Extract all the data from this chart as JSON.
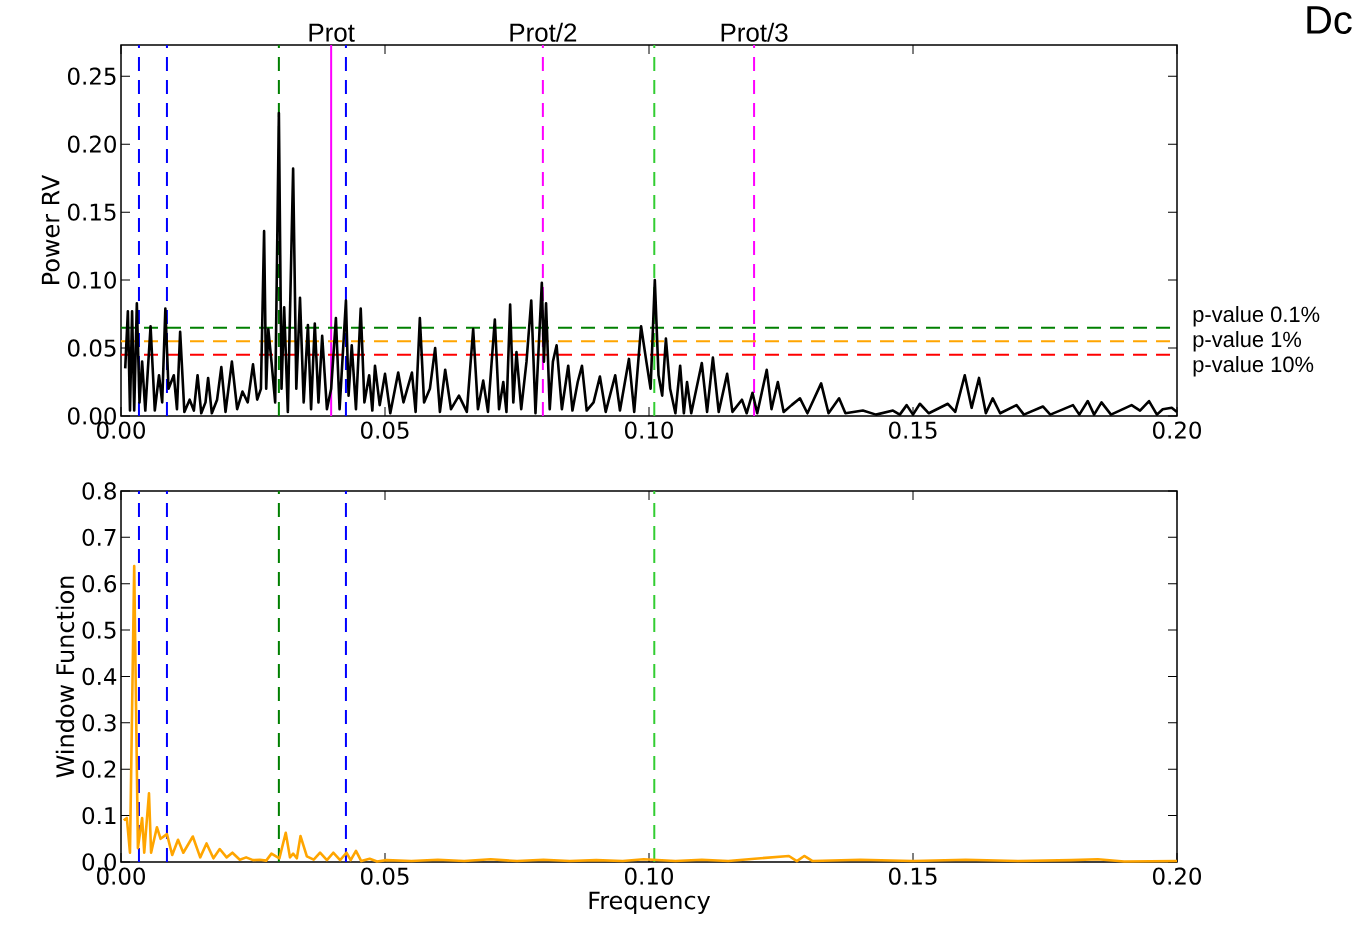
{
  "chart_data": [
    {
      "type": "line",
      "ylabel": "Power RV",
      "annotations": [
        "Dc"
      ],
      "xlim": [
        0,
        0.2
      ],
      "ylim": [
        0,
        0.273
      ],
      "xticks": [
        {
          "value": 0,
          "label": "0.00"
        },
        {
          "value": 0.05,
          "label": "0.05"
        },
        {
          "value": 0.1,
          "label": "0.10"
        },
        {
          "value": 0.15,
          "label": "0.15"
        },
        {
          "value": 0.2,
          "label": "0.20"
        }
      ],
      "yticks": [
        {
          "value": 0,
          "label": "0.00"
        },
        {
          "value": 0.05,
          "label": "0.05"
        },
        {
          "value": 0.1,
          "label": "0.10"
        },
        {
          "value": 0.15,
          "label": "0.15"
        },
        {
          "value": 0.2,
          "label": "0.20"
        },
        {
          "value": 0.25,
          "label": "0.25"
        }
      ],
      "ref_lines": [
        {
          "axis": "x",
          "value": 0.0034,
          "color": "#0000ff",
          "line_style": "dashed"
        },
        {
          "axis": "x",
          "value": 0.0087,
          "color": "#0000ff",
          "line_style": "dashed"
        },
        {
          "axis": "x",
          "value": 0.0299,
          "color": "#007f00",
          "line_style": "dashed"
        },
        {
          "axis": "x",
          "value": 0.0398,
          "color": "#ff00ff",
          "line_style": "solid",
          "label": "Prot"
        },
        {
          "axis": "x",
          "value": 0.0426,
          "color": "#0000ff",
          "line_style": "dashed"
        },
        {
          "axis": "x",
          "value": 0.0799,
          "color": "#ff00ff",
          "line_style": "dashed",
          "label": "Prot/2"
        },
        {
          "axis": "x",
          "value": 0.101,
          "color": "#32cd32",
          "line_style": "dashed"
        },
        {
          "axis": "x",
          "value": 0.1199,
          "color": "#ff00ff",
          "line_style": "dashed",
          "label": "Prot/3"
        },
        {
          "axis": "y",
          "value": 0.065,
          "color": "#008000",
          "line_style": "dashed",
          "label": "p-value 0.1%"
        },
        {
          "axis": "y",
          "value": 0.055,
          "color": "#ffa500",
          "line_style": "dashed",
          "label": "p-value 1%"
        },
        {
          "axis": "y",
          "value": 0.045,
          "color": "#ff0000",
          "line_style": "dashed",
          "label": "p-value 10%"
        }
      ],
      "x": [
        0.0008,
        0.0013,
        0.0017,
        0.0021,
        0.0025,
        0.003,
        0.0035,
        0.004,
        0.0046,
        0.0056,
        0.0064,
        0.0072,
        0.0078,
        0.0084,
        0.009,
        0.01,
        0.0106,
        0.0112,
        0.012,
        0.013,
        0.0138,
        0.0145,
        0.0152,
        0.016,
        0.0165,
        0.0172,
        0.0182,
        0.019,
        0.0198,
        0.021,
        0.022,
        0.023,
        0.024,
        0.025,
        0.0258,
        0.0265,
        0.0271,
        0.0275,
        0.0279,
        0.0285,
        0.0292,
        0.0299,
        0.0304,
        0.0309,
        0.0316,
        0.0326,
        0.0332,
        0.0339,
        0.0346,
        0.0354,
        0.036,
        0.0367,
        0.0374,
        0.0381,
        0.039,
        0.0398,
        0.0407,
        0.0414,
        0.0426,
        0.0431,
        0.0437,
        0.0445,
        0.0454,
        0.0461,
        0.047,
        0.0476,
        0.0481,
        0.049,
        0.05,
        0.051,
        0.0525,
        0.0535,
        0.0551,
        0.0558,
        0.0566,
        0.0574,
        0.0585,
        0.0595,
        0.0604,
        0.0614,
        0.0625,
        0.064,
        0.0655,
        0.0667,
        0.0676,
        0.0686,
        0.0695,
        0.0708,
        0.0716,
        0.0724,
        0.073,
        0.0737,
        0.0743,
        0.0749,
        0.0758,
        0.0768,
        0.0777,
        0.0785,
        0.0797,
        0.0801,
        0.0805,
        0.0812,
        0.0818,
        0.0825,
        0.0835,
        0.0847,
        0.0855,
        0.0865,
        0.0873,
        0.0882,
        0.0895,
        0.0907,
        0.0918,
        0.0936,
        0.0945,
        0.0962,
        0.0972,
        0.0985,
        0.0995,
        0.1003,
        0.1011,
        0.1018,
        0.1025,
        0.1032,
        0.104,
        0.105,
        0.1059,
        0.1066,
        0.1072,
        0.108,
        0.11,
        0.111,
        0.1121,
        0.1132,
        0.1148,
        0.1158,
        0.1176,
        0.1185,
        0.1196,
        0.1205,
        0.1223,
        0.1232,
        0.1244,
        0.1255,
        0.127,
        0.1286,
        0.13,
        0.1326,
        0.134,
        0.136,
        0.1372,
        0.1405,
        0.143,
        0.1462,
        0.1475,
        0.1488,
        0.15,
        0.1513,
        0.153,
        0.1566,
        0.158,
        0.1598,
        0.1611,
        0.1625,
        0.1638,
        0.1651,
        0.1665,
        0.1696,
        0.171,
        0.1746,
        0.176,
        0.1803,
        0.1815,
        0.1831,
        0.1843,
        0.1857,
        0.1875,
        0.1914,
        0.193,
        0.1947,
        0.1962,
        0.1973,
        0.199,
        0.2
      ],
      "series": [
        {
          "color": "#000000",
          "values": [
            0.035,
            0.077,
            0.004,
            0.077,
            0.004,
            0.083,
            0.01,
            0.04,
            0.004,
            0.066,
            0.004,
            0.03,
            0.01,
            0.079,
            0.02,
            0.03,
            0.005,
            0.062,
            0.003,
            0.012,
            0.004,
            0.03,
            0.002,
            0.01,
            0.028,
            0.002,
            0.012,
            0.036,
            0.003,
            0.04,
            0.005,
            0.018,
            0.01,
            0.038,
            0.012,
            0.02,
            0.136,
            0.02,
            0.064,
            0.04,
            0.01,
            0.223,
            0.02,
            0.08,
            0.003,
            0.182,
            0.02,
            0.087,
            0.01,
            0.067,
            0.005,
            0.068,
            0.01,
            0.059,
            0.005,
            0.02,
            0.072,
            0.005,
            0.085,
            0.015,
            0.052,
            0.005,
            0.079,
            0.01,
            0.03,
            0.004,
            0.037,
            0.008,
            0.031,
            0.002,
            0.032,
            0.01,
            0.032,
            0.003,
            0.072,
            0.01,
            0.02,
            0.05,
            0.003,
            0.034,
            0.005,
            0.015,
            0.003,
            0.064,
            0.005,
            0.026,
            0.003,
            0.071,
            0.005,
            0.025,
            0.003,
            0.082,
            0.01,
            0.047,
            0.005,
            0.04,
            0.085,
            0.002,
            0.098,
            0.04,
            0.083,
            0.005,
            0.04,
            0.052,
            0.005,
            0.037,
            0.004,
            0.025,
            0.037,
            0.004,
            0.01,
            0.029,
            0.003,
            0.03,
            0.004,
            0.042,
            0.003,
            0.066,
            0.04,
            0.02,
            0.1,
            0.03,
            0.015,
            0.057,
            0.02,
            0.002,
            0.037,
            0.002,
            0.025,
            0.002,
            0.039,
            0.003,
            0.043,
            0.003,
            0.031,
            0.003,
            0.012,
            0.002,
            0.017,
            0.002,
            0.034,
            0.005,
            0.025,
            0.003,
            0.008,
            0.013,
            0.002,
            0.024,
            0.002,
            0.013,
            0.002,
            0.004,
            0.001,
            0.004,
            0.001,
            0.008,
            0.001,
            0.009,
            0.002,
            0.009,
            0.003,
            0.03,
            0.006,
            0.028,
            0.002,
            0.013,
            0.002,
            0.008,
            0.001,
            0.007,
            0.001,
            0.008,
            0.001,
            0.011,
            0.001,
            0.01,
            0.001,
            0.008,
            0.004,
            0.011,
            0.001,
            0.005,
            0.006,
            0.003
          ]
        }
      ]
    },
    {
      "type": "line",
      "xlabel": "Frequency",
      "ylabel": "Window Function",
      "xlim": [
        0,
        0.2
      ],
      "ylim": [
        0,
        0.8
      ],
      "xticks": [
        {
          "value": 0,
          "label": "0.00"
        },
        {
          "value": 0.05,
          "label": "0.05"
        },
        {
          "value": 0.1,
          "label": "0.10"
        },
        {
          "value": 0.15,
          "label": "0.15"
        },
        {
          "value": 0.2,
          "label": "0.20"
        }
      ],
      "yticks": [
        {
          "value": 0,
          "label": "0.0"
        },
        {
          "value": 0.1,
          "label": "0.1"
        },
        {
          "value": 0.2,
          "label": "0.2"
        },
        {
          "value": 0.3,
          "label": "0.3"
        },
        {
          "value": 0.4,
          "label": "0.4"
        },
        {
          "value": 0.5,
          "label": "0.5"
        },
        {
          "value": 0.6,
          "label": "0.6"
        },
        {
          "value": 0.7,
          "label": "0.7"
        },
        {
          "value": 0.8,
          "label": "0.8"
        }
      ],
      "ref_lines": [
        {
          "axis": "x",
          "value": 0.0034,
          "color": "#0000ff",
          "line_style": "dashed"
        },
        {
          "axis": "x",
          "value": 0.0087,
          "color": "#0000ff",
          "line_style": "dashed"
        },
        {
          "axis": "x",
          "value": 0.0299,
          "color": "#007f00",
          "line_style": "dashed"
        },
        {
          "axis": "x",
          "value": 0.0426,
          "color": "#0000ff",
          "line_style": "dashed"
        },
        {
          "axis": "x",
          "value": 0.101,
          "color": "#32cd32",
          "line_style": "dashed"
        }
      ],
      "x": [
        0.0005,
        0.0011,
        0.0017,
        0.0025,
        0.0032,
        0.004,
        0.0044,
        0.0053,
        0.0057,
        0.0068,
        0.0075,
        0.0087,
        0.0097,
        0.0108,
        0.0118,
        0.0136,
        0.015,
        0.0162,
        0.0175,
        0.0187,
        0.02,
        0.0211,
        0.0225,
        0.0237,
        0.025,
        0.0263,
        0.0275,
        0.0285,
        0.03,
        0.0312,
        0.032,
        0.0326,
        0.0333,
        0.034,
        0.0352,
        0.0365,
        0.0377,
        0.039,
        0.0402,
        0.0415,
        0.0427,
        0.0435,
        0.0445,
        0.0455,
        0.0471,
        0.0485,
        0.0503,
        0.055,
        0.06,
        0.065,
        0.07,
        0.075,
        0.08,
        0.085,
        0.09,
        0.095,
        0.099,
        0.105,
        0.11,
        0.115,
        0.12,
        0.1265,
        0.128,
        0.1294,
        0.131,
        0.14,
        0.15,
        0.16,
        0.17,
        0.18,
        0.185,
        0.19,
        0.2
      ],
      "series": [
        {
          "color": "#ffa500",
          "values": [
            0.09,
            0.095,
            0.02,
            0.638,
            0.03,
            0.095,
            0.02,
            0.148,
            0.02,
            0.075,
            0.05,
            0.06,
            0.015,
            0.048,
            0.02,
            0.055,
            0.01,
            0.04,
            0.008,
            0.028,
            0.01,
            0.02,
            0.005,
            0.01,
            0.004,
            0.005,
            0.003,
            0.018,
            0.008,
            0.063,
            0.01,
            0.018,
            0.008,
            0.056,
            0.012,
            0.005,
            0.02,
            0.004,
            0.02,
            0.004,
            0.02,
            0.004,
            0.024,
            0.002,
            0.007,
            0.001,
            0.004,
            0.002,
            0.005,
            0.002,
            0.006,
            0.002,
            0.005,
            0.002,
            0.004,
            0.002,
            0.006,
            0.002,
            0.005,
            0.002,
            0.007,
            0.013,
            0.002,
            0.013,
            0.002,
            0.005,
            0.002,
            0.005,
            0.002,
            0.004,
            0.006,
            0.001,
            0.002
          ]
        }
      ]
    }
  ]
}
